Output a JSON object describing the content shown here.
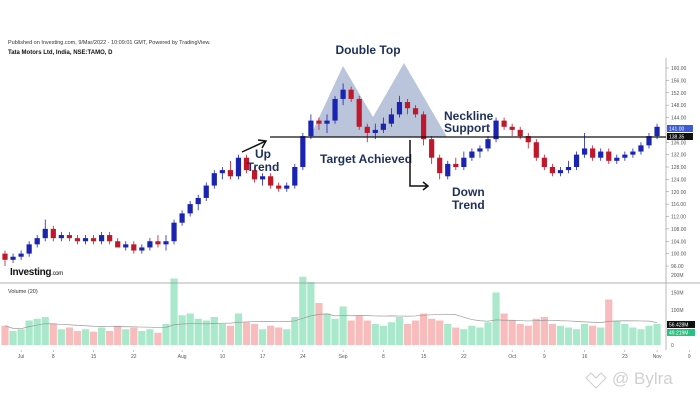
{
  "header": {
    "published": "Published on Investing.com, 9/Mar/2022 - 10:09:01 GMT, Powered by TradingView.",
    "symbol": "Tata Motors Ltd, India, NSE:TAMO, D"
  },
  "logo": {
    "main": "Investing",
    "suffix": ".com"
  },
  "watermark": "@ Bylra",
  "chart_data": {
    "type": "candlestick",
    "title": "Tata Motors Ltd, India, NSE:TAMO, D",
    "x_ticks": [
      {
        "label": "Jul",
        "i": 2
      },
      {
        "label": "8",
        "i": 6
      },
      {
        "label": "15",
        "i": 11
      },
      {
        "label": "22",
        "i": 16
      },
      {
        "label": "Aug",
        "i": 22
      },
      {
        "label": "10",
        "i": 27
      },
      {
        "label": "17",
        "i": 32
      },
      {
        "label": "24",
        "i": 37
      },
      {
        "label": "Sep",
        "i": 42
      },
      {
        "label": "8",
        "i": 47
      },
      {
        "label": "15",
        "i": 52
      },
      {
        "label": "22",
        "i": 57
      },
      {
        "label": "Oct",
        "i": 63
      },
      {
        "label": "9",
        "i": 67
      },
      {
        "label": "16",
        "i": 72
      },
      {
        "label": "23",
        "i": 77
      },
      {
        "label": "Nov",
        "i": 81
      },
      {
        "label": "9",
        "i": 85
      }
    ],
    "price_ticks": [
      "160.00",
      "156.00",
      "152.00",
      "148.00",
      "144.00",
      "136.00",
      "132.00",
      "128.00",
      "124.00",
      "120.00",
      "116.00",
      "112.00",
      "108.00",
      "104.00",
      "100.00",
      "96.00"
    ],
    "ylim": [
      96,
      160
    ],
    "last_price": {
      "label": "141.00",
      "value": 141,
      "color": "#3b5bdb"
    },
    "neckline_price": {
      "label": "138.35",
      "value": 138.35,
      "color": "#111111"
    },
    "candles": [
      [
        100,
        101,
        96,
        98
      ],
      [
        98,
        100,
        97,
        99
      ],
      [
        99,
        101,
        98,
        100
      ],
      [
        100,
        104,
        99,
        103
      ],
      [
        103,
        106,
        102,
        105
      ],
      [
        105,
        111,
        104,
        108
      ],
      [
        108,
        109,
        104,
        105
      ],
      [
        105,
        107,
        104,
        106
      ],
      [
        106,
        107,
        104,
        105
      ],
      [
        105,
        106,
        103,
        104
      ],
      [
        104,
        106,
        103,
        105
      ],
      [
        105,
        106,
        103,
        104
      ],
      [
        104,
        107,
        103,
        106
      ],
      [
        106,
        107,
        103,
        104
      ],
      [
        104,
        105,
        102,
        102
      ],
      [
        102,
        104,
        101,
        103
      ],
      [
        103,
        104,
        100,
        101
      ],
      [
        101,
        103,
        100,
        102
      ],
      [
        102,
        105,
        101,
        104
      ],
      [
        104,
        106,
        102,
        103
      ],
      [
        103,
        106,
        101,
        104
      ],
      [
        104,
        111,
        103,
        110
      ],
      [
        110,
        114,
        109,
        113
      ],
      [
        113,
        117,
        112,
        116
      ],
      [
        116,
        119,
        114,
        118
      ],
      [
        118,
        123,
        117,
        122
      ],
      [
        122,
        127,
        121,
        126
      ],
      [
        126,
        128,
        124,
        127
      ],
      [
        127,
        130,
        124,
        125
      ],
      [
        125,
        132,
        124,
        131
      ],
      [
        131,
        132,
        126,
        127
      ],
      [
        127,
        128,
        123,
        124
      ],
      [
        124,
        126,
        122,
        125
      ],
      [
        125,
        126,
        121,
        122
      ],
      [
        122,
        123,
        120,
        121
      ],
      [
        121,
        123,
        120,
        122
      ],
      [
        122,
        129,
        121,
        128
      ],
      [
        128,
        139,
        127,
        138
      ],
      [
        138,
        145,
        137,
        143
      ],
      [
        143,
        144,
        140,
        142
      ],
      [
        142,
        145,
        139,
        143
      ],
      [
        143,
        151,
        142,
        150
      ],
      [
        150,
        155,
        148,
        153
      ],
      [
        153,
        154,
        149,
        150
      ],
      [
        150,
        151,
        140,
        141
      ],
      [
        141,
        142,
        136,
        139
      ],
      [
        139,
        142,
        137,
        140
      ],
      [
        140,
        144,
        139,
        142
      ],
      [
        142,
        147,
        141,
        145
      ],
      [
        145,
        151,
        144,
        149
      ],
      [
        149,
        150,
        145,
        147
      ],
      [
        147,
        148,
        144,
        145
      ],
      [
        145,
        146,
        135,
        137
      ],
      [
        137,
        138,
        129,
        131
      ],
      [
        131,
        132,
        124,
        126
      ],
      [
        125,
        130,
        124,
        129
      ],
      [
        129,
        131,
        127,
        128
      ],
      [
        128,
        133,
        127,
        131
      ],
      [
        131,
        134,
        130,
        133
      ],
      [
        133,
        135,
        131,
        134
      ],
      [
        134,
        138,
        133,
        137
      ],
      [
        137,
        144,
        136,
        143
      ],
      [
        143,
        144,
        140,
        141
      ],
      [
        141,
        142,
        138,
        140
      ],
      [
        140,
        141,
        137,
        138
      ],
      [
        138,
        139,
        134,
        136
      ],
      [
        136,
        137,
        130,
        131
      ],
      [
        131,
        132,
        127,
        128
      ],
      [
        128,
        129,
        125,
        126
      ],
      [
        126,
        128,
        125,
        127
      ],
      [
        127,
        130,
        126,
        128
      ],
      [
        128,
        133,
        127,
        132
      ],
      [
        132,
        139,
        131,
        134
      ],
      [
        134,
        135,
        130,
        131
      ],
      [
        131,
        134,
        130,
        133
      ],
      [
        133,
        134,
        129,
        130
      ],
      [
        130,
        132,
        129,
        131
      ],
      [
        131,
        133,
        130,
        132
      ],
      [
        132,
        134,
        131,
        133
      ],
      [
        133,
        136,
        132,
        135
      ],
      [
        135,
        139,
        134,
        138
      ],
      [
        138,
        142,
        137,
        141
      ]
    ],
    "volume": {
      "label": "Volume (20)",
      "ticks": [
        "200M",
        "150M",
        "100M",
        "0"
      ],
      "ylim_m": [
        0,
        200
      ],
      "current": {
        "label": "56.428M",
        "color": "#111111"
      },
      "ma": {
        "label": "49.219M",
        "color": "#26c281"
      },
      "values_m": [
        55,
        40,
        45,
        70,
        75,
        80,
        60,
        45,
        50,
        40,
        45,
        38,
        50,
        40,
        55,
        45,
        50,
        40,
        45,
        35,
        60,
        190,
        85,
        90,
        75,
        70,
        80,
        60,
        55,
        90,
        65,
        60,
        45,
        55,
        50,
        45,
        80,
        195,
        180,
        120,
        90,
        75,
        110,
        70,
        85,
        70,
        60,
        55,
        65,
        80,
        60,
        70,
        90,
        75,
        70,
        60,
        50,
        45,
        55,
        50,
        65,
        150,
        90,
        70,
        60,
        55,
        75,
        80,
        60,
        55,
        50,
        45,
        60,
        55,
        50,
        130,
        70,
        60,
        50,
        45,
        55,
        60
      ]
    },
    "annotations": {
      "double_top": "Double Top",
      "up_trend": [
        "Up",
        "Trend"
      ],
      "target": "Target Achieved",
      "neckline": [
        "Neckline",
        "Support"
      ],
      "down_trend": [
        "Down",
        "Trend"
      ]
    },
    "colors": {
      "up": "#1a24b0",
      "down": "#c0172b",
      "vol_up": "#a9e8cb",
      "vol_down": "#f8bcbc",
      "pattern": "#b3bfd8",
      "annotation": "#1e2f5c"
    }
  }
}
